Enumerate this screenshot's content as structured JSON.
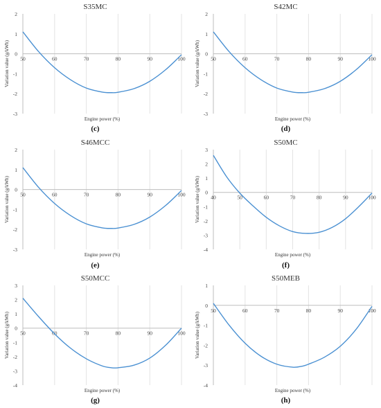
{
  "chart_data": [
    {
      "type": "line",
      "panel_label": "(c)",
      "title": "S35MC",
      "xlabel": "Engine power (%)",
      "ylabel": "Variation value (g/kWh)",
      "xlim": [
        50,
        100
      ],
      "ylim": [
        -3,
        2
      ],
      "x_ticks": [
        50,
        60,
        70,
        80,
        90,
        100
      ],
      "y_ticks": [
        2,
        1,
        0,
        -1,
        -2,
        -3
      ],
      "grid": "vertical",
      "color": "#4a90d2",
      "series": [
        {
          "x": [
            50,
            55,
            60,
            65,
            70,
            75,
            78,
            80,
            85,
            90,
            95,
            100
          ],
          "y": [
            1.1,
            0.1,
            -0.7,
            -1.3,
            -1.72,
            -1.92,
            -1.95,
            -1.93,
            -1.75,
            -1.38,
            -0.8,
            -0.05
          ]
        }
      ]
    },
    {
      "type": "line",
      "panel_label": "(d)",
      "title": "S42MC",
      "xlabel": "Engine power (%)",
      "ylabel": "Variation value (g/kWh)",
      "xlim": [
        50,
        100
      ],
      "ylim": [
        -3,
        2
      ],
      "x_ticks": [
        50,
        60,
        70,
        80,
        90,
        100
      ],
      "y_ticks": [
        2,
        1,
        0,
        -1,
        -2,
        -3
      ],
      "grid": "vertical",
      "color": "#4a90d2",
      "series": [
        {
          "x": [
            50,
            55,
            60,
            65,
            70,
            75,
            78,
            80,
            85,
            90,
            95,
            100
          ],
          "y": [
            1.1,
            0.1,
            -0.7,
            -1.3,
            -1.72,
            -1.92,
            -1.95,
            -1.93,
            -1.75,
            -1.38,
            -0.8,
            -0.05
          ]
        }
      ]
    },
    {
      "type": "line",
      "panel_label": "(e)",
      "title": "S46MCC",
      "xlabel": "Engine power (%)",
      "ylabel": "Variation value (g/kWh)",
      "xlim": [
        50,
        100
      ],
      "ylim": [
        -3,
        2
      ],
      "x_ticks": [
        50,
        60,
        70,
        80,
        90,
        100
      ],
      "y_ticks": [
        2,
        1,
        0,
        -1,
        -2,
        -3
      ],
      "grid": "vertical",
      "color": "#4a90d2",
      "series": [
        {
          "x": [
            50,
            55,
            60,
            65,
            70,
            75,
            78,
            80,
            85,
            90,
            95,
            100
          ],
          "y": [
            1.1,
            0.1,
            -0.7,
            -1.3,
            -1.72,
            -1.92,
            -1.95,
            -1.93,
            -1.75,
            -1.38,
            -0.8,
            -0.05
          ]
        }
      ]
    },
    {
      "type": "line",
      "panel_label": "(f)",
      "title": "S50MC",
      "xlabel": "Engine power (%)",
      "ylabel": "Variation value (g/kWh)",
      "xlim": [
        40,
        100
      ],
      "ylim": [
        -4,
        3
      ],
      "x_ticks": [
        40,
        50,
        60,
        70,
        80,
        90,
        100
      ],
      "y_ticks": [
        3,
        2,
        1,
        0,
        -1,
        -2,
        -3,
        -4
      ],
      "grid": "vertical",
      "color": "#4a90d2",
      "series": [
        {
          "x": [
            40,
            45,
            50,
            55,
            60,
            65,
            70,
            75,
            80,
            85,
            90,
            95,
            100
          ],
          "y": [
            2.6,
            1.1,
            -0.05,
            -0.95,
            -1.75,
            -2.35,
            -2.75,
            -2.88,
            -2.8,
            -2.45,
            -1.85,
            -1.0,
            -0.05
          ]
        }
      ]
    },
    {
      "type": "line",
      "panel_label": "(g)",
      "title": "S50MCC",
      "xlabel": "Engine power (%)",
      "ylabel": "Variation value (g/kWh)",
      "xlim": [
        50,
        100
      ],
      "ylim": [
        -4,
        3
      ],
      "x_ticks": [
        50,
        60,
        70,
        80,
        90,
        100
      ],
      "y_ticks": [
        3,
        2,
        1,
        0,
        -1,
        -2,
        -3,
        -4
      ],
      "grid": "vertical",
      "color": "#4a90d2",
      "series": [
        {
          "x": [
            50,
            55,
            60,
            65,
            70,
            75,
            78,
            80,
            85,
            90,
            95,
            100
          ],
          "y": [
            2.1,
            0.8,
            -0.4,
            -1.4,
            -2.15,
            -2.65,
            -2.78,
            -2.78,
            -2.6,
            -2.1,
            -1.2,
            0.0
          ]
        }
      ]
    },
    {
      "type": "line",
      "panel_label": "(h)",
      "title": "S50MEB",
      "xlabel": "Engine power (%)",
      "ylabel": "Variation value (g/kWh)",
      "xlim": [
        50,
        100
      ],
      "ylim": [
        -4,
        1
      ],
      "x_ticks": [
        50,
        60,
        70,
        80,
        90,
        100
      ],
      "y_ticks": [
        1,
        0,
        -1,
        -2,
        -3,
        -4
      ],
      "grid": "vertical",
      "color": "#4a90d2",
      "series": [
        {
          "x": [
            50,
            55,
            60,
            65,
            70,
            75,
            78,
            80,
            85,
            90,
            95,
            100
          ],
          "y": [
            0.1,
            -1.0,
            -1.9,
            -2.55,
            -2.95,
            -3.1,
            -3.05,
            -2.95,
            -2.6,
            -2.05,
            -1.2,
            -0.05
          ]
        }
      ]
    }
  ]
}
